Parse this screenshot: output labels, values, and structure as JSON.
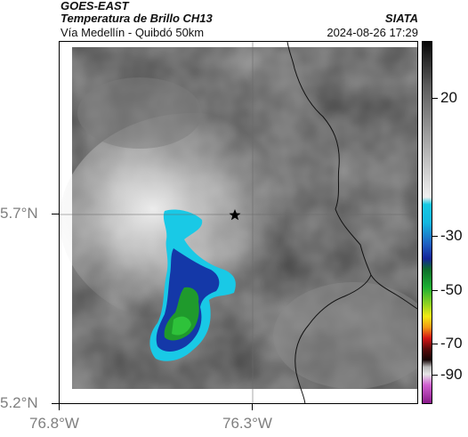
{
  "header": {
    "satellite": "GOES-EAST",
    "product": "Temperatura de Brillo CH13",
    "org": "SIATA",
    "region": "Vía Medellín - Quibdó 50km",
    "timestamp": "2024-08-26 17:29"
  },
  "map": {
    "y_ticks": [
      "5.7°N",
      "5.2°N"
    ],
    "x_ticks": [
      "76.8°W",
      "76.3°W"
    ],
    "marker": "star-icon"
  },
  "colorbar": {
    "labels": [
      "20",
      "-30",
      "-50",
      "-70",
      "-90"
    ],
    "values": [
      20,
      -30,
      -50,
      -70,
      -90
    ],
    "range": [
      -95,
      45
    ]
  },
  "colors": {
    "background_gray": "#9a9a9a",
    "cloud_cyan": "#19c9e6",
    "cloud_blue": "#1438a8",
    "cloud_green": "#22b030",
    "boundary": "#000000"
  }
}
